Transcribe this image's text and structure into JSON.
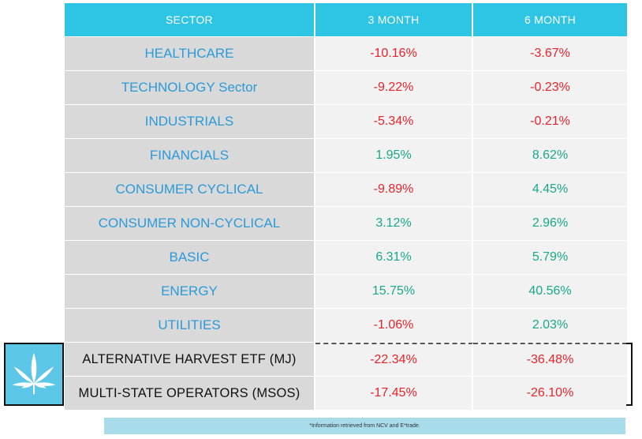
{
  "header": {
    "sector": "SECTOR",
    "three_month": "3 MONTH",
    "six_month": "6 MONTH"
  },
  "rows": [
    {
      "sector": "HEALTHCARE",
      "three_month": "-10.16%",
      "six_month": "-3.67%"
    },
    {
      "sector": "TECHNOLOGY Sector",
      "three_month": "-9.22%",
      "six_month": "-0.23%"
    },
    {
      "sector": "INDUSTRIALS",
      "three_month": "-5.34%",
      "six_month": "-0.21%"
    },
    {
      "sector": "FINANCIALS",
      "three_month": "1.95%",
      "six_month": "8.62%"
    },
    {
      "sector": "CONSUMER CYCLICAL",
      "three_month": "-9.89%",
      "six_month": "4.45%"
    },
    {
      "sector": "CONSUMER NON-CYCLICAL",
      "three_month": "3.12%",
      "six_month": "2.96%"
    },
    {
      "sector": "BASIC",
      "three_month": "6.31%",
      "six_month": "5.79%"
    },
    {
      "sector": "ENERGY",
      "three_month": "15.75%",
      "six_month": "40.56%"
    },
    {
      "sector": "UTILITIES",
      "three_month": "-1.06%",
      "six_month": "2.03%"
    }
  ],
  "cannabis_rows": [
    {
      "sector": "ALTERNATIVE HARVEST ETF (MJ)",
      "three_month": "-22.34%",
      "six_month": "-36.48%"
    },
    {
      "sector": "MULTI-STATE OPERATORS (MSOS)",
      "three_month": "-17.45%",
      "six_month": "-26.10%"
    }
  ],
  "logo": {
    "icon": "cannabis-leaf-icon",
    "background": "#5cc6e6"
  },
  "footnote": "*Information retrieved from NCV and E*trade.",
  "colors": {
    "header_bg": "#2ec4e4",
    "negative": "#e8232b",
    "positive": "#1aa88a",
    "sector_text": "#2a9ad8"
  }
}
